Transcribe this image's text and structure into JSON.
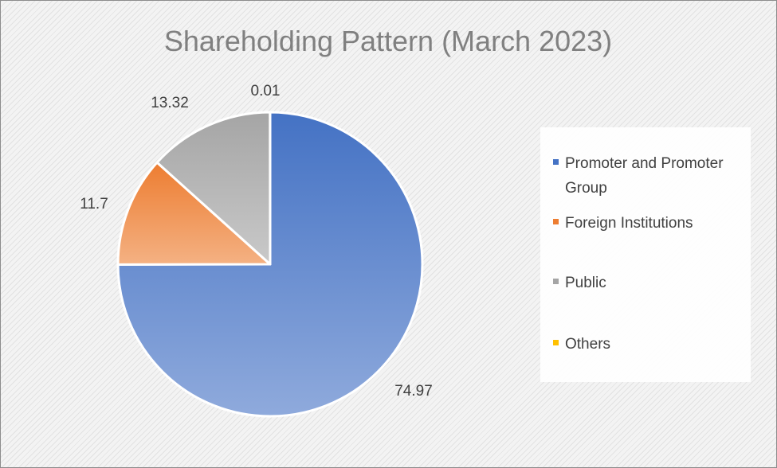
{
  "chart_data": {
    "type": "pie",
    "title": "Shareholding Pattern (March 2023)",
    "categories": [
      "Promoter and Promoter Group",
      "Foreign Institutions",
      "Public",
      "Others"
    ],
    "values": [
      74.97,
      11.7,
      13.32,
      0.01
    ],
    "data_labels": [
      "74.97",
      "11.7",
      "13.32",
      "0.01"
    ],
    "colors": [
      "#4472c4",
      "#ed7d31",
      "#a5a5a5",
      "#ffc000"
    ],
    "legend_position": "right",
    "legend": [
      {
        "line1": "Promoter and Promoter",
        "line2": "Group"
      },
      {
        "line1": "Foreign Institutions"
      },
      {
        "line1": "Public"
      },
      {
        "line1": "Others"
      }
    ]
  }
}
